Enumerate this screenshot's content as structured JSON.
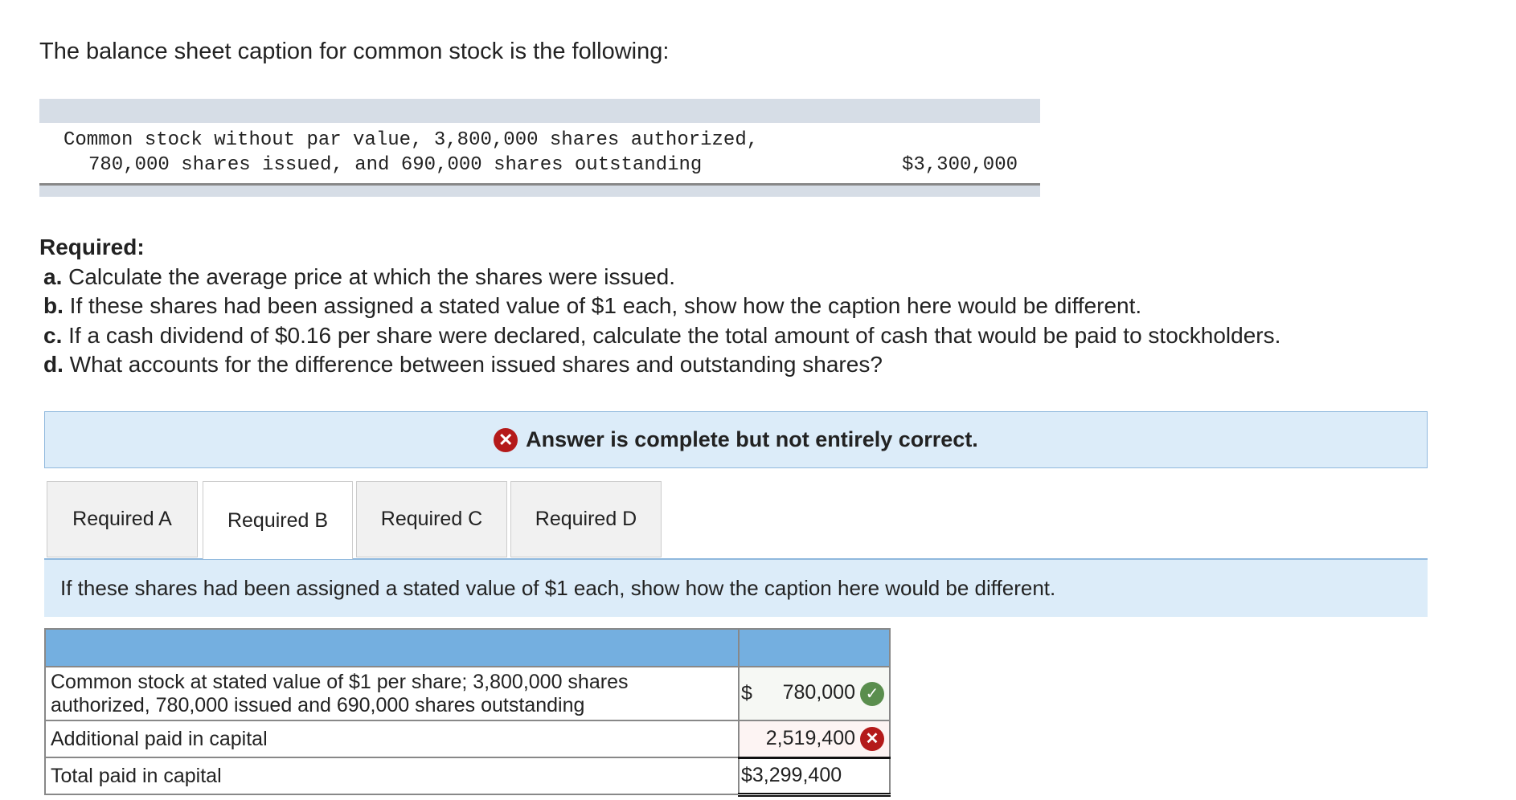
{
  "title": "The balance sheet caption for common stock is the following:",
  "caption": {
    "line1": "Common stock without par value, 3,800,000 shares authorized,",
    "line2": "780,000 shares issued, and 690,000 shares outstanding",
    "amount": "$3,300,000"
  },
  "required": {
    "heading": "Required:",
    "items": [
      {
        "letter": "a.",
        "text": " Calculate the average price at which the shares were issued."
      },
      {
        "letter": "b.",
        "text": " If these shares had been assigned a stated value of $1 each, show how the caption here would be different."
      },
      {
        "letter": "c.",
        "text": " If a cash dividend of $0.16 per share were declared, calculate the total amount of cash that would be paid to stockholders."
      },
      {
        "letter": "d.",
        "text": " What accounts for the difference between issued shares and outstanding shares?"
      }
    ]
  },
  "banner": {
    "icon": "x-circle-icon",
    "text": "Answer is complete but not entirely correct."
  },
  "tabs": [
    "Required A",
    "Required B",
    "Required C",
    "Required D"
  ],
  "active_tab": "Required B",
  "instruction": "If these shares had been assigned a stated value of $1 each, show how the caption here would be different.",
  "answer_table": {
    "rows": [
      {
        "label_line1": "Common stock at stated value of $1 per share; 3,800,000 shares",
        "label_line2": "authorized, 780,000 issued and 690,000 shares outstanding",
        "currency": "$",
        "value": "780,000",
        "status": "correct"
      },
      {
        "label": "Additional paid in capital",
        "value": "2,519,400",
        "status": "incorrect"
      },
      {
        "label": "Total paid in capital",
        "value": "$3,299,400"
      }
    ]
  },
  "colors": {
    "correct": "#5a8e4e",
    "incorrect": "#b41a1a",
    "header": "#74afe0",
    "banner": "#dcecf9"
  }
}
